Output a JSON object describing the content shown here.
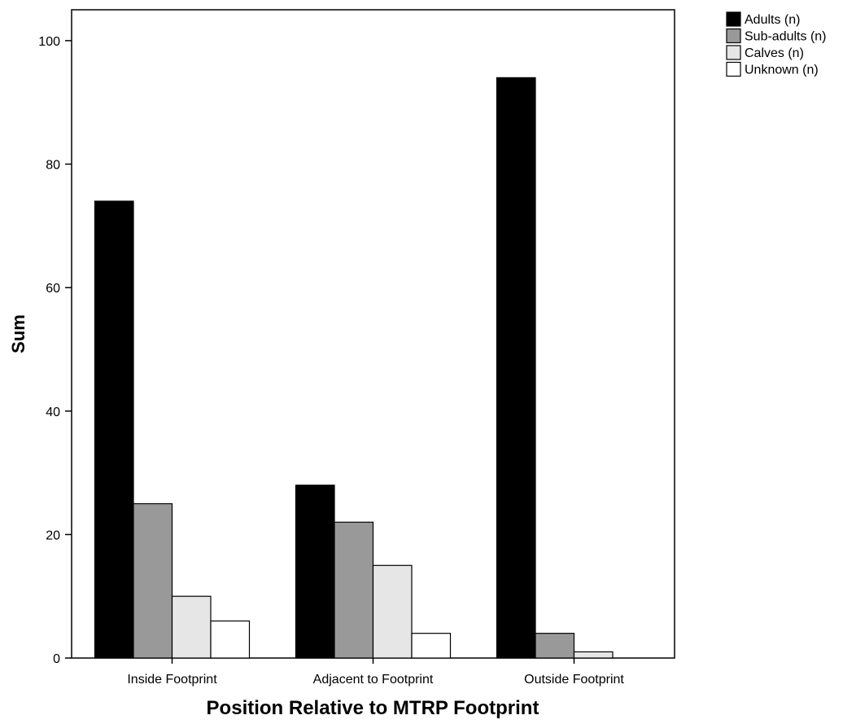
{
  "chart_data": {
    "type": "bar",
    "title": "",
    "xlabel": "Position Relative to MTRP Footprint",
    "ylabel": "Sum",
    "categories": [
      "Inside Footprint",
      "Adjacent to Footprint",
      "Outside Footprint"
    ],
    "series": [
      {
        "name": "Adults (n)",
        "values": [
          74,
          28,
          94
        ],
        "color": "#000000"
      },
      {
        "name": "Sub-adults (n)",
        "values": [
          25,
          22,
          4
        ],
        "color": "#999999"
      },
      {
        "name": "Calves (n)",
        "values": [
          10,
          15,
          1
        ],
        "color": "#e6e6e6"
      },
      {
        "name": "Unknown (n)",
        "values": [
          6,
          4,
          0
        ],
        "color": "#ffffff"
      }
    ],
    "ylim": [
      0,
      105
    ],
    "yticks": [
      0,
      20,
      40,
      60,
      80,
      100
    ],
    "ytick_labels": [
      "0",
      "20",
      "40",
      "60",
      "80",
      "100"
    ],
    "grid": false,
    "legend_position": "top-right outside"
  }
}
